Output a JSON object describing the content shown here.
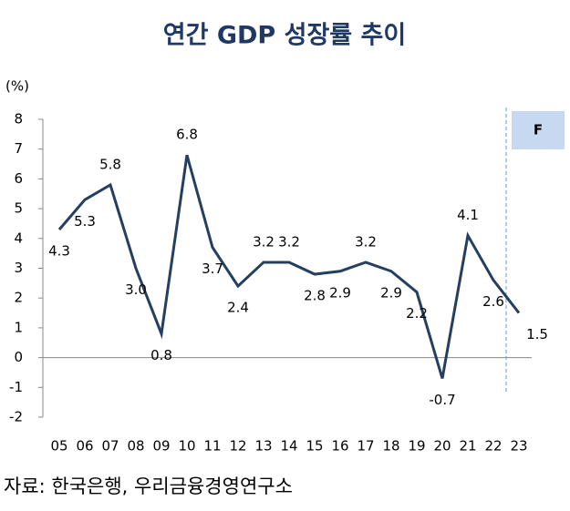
{
  "chart_data": {
    "type": "line",
    "title": "연간 GDP 성장률 추이",
    "y_label": "(%)",
    "categories": [
      "05",
      "06",
      "07",
      "08",
      "09",
      "10",
      "11",
      "12",
      "13",
      "14",
      "15",
      "16",
      "17",
      "18",
      "19",
      "20",
      "21",
      "22",
      "23"
    ],
    "series": [
      {
        "color": "#243f60",
        "values": [
          4.3,
          5.3,
          5.8,
          3.0,
          0.8,
          6.8,
          3.7,
          2.4,
          3.2,
          3.2,
          2.8,
          2.9,
          3.2,
          2.9,
          2.2,
          -0.7,
          4.1,
          2.6,
          1.5
        ],
        "value_labels": [
          "4.3",
          "5.3",
          "5.8",
          "3.0",
          "0.8",
          "6.8",
          "3.7",
          "2.4",
          "3.2",
          "3.2",
          "2.8",
          "2.9",
          "3.2",
          "2.9",
          "2.2",
          "-0.7",
          "4.1",
          "2.6",
          "1.5"
        ]
      }
    ],
    "ylim": [
      -2,
      8
    ],
    "yticks": [
      -2,
      -1,
      0,
      1,
      2,
      3,
      4,
      5,
      6,
      7,
      8
    ],
    "forecast_label": "F",
    "source": "자료: 한국은행, 우리금융경영연구소"
  }
}
